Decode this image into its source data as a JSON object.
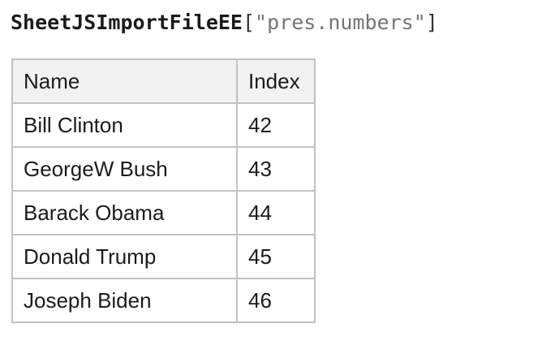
{
  "title": {
    "object": "SheetJSImportFileEE",
    "open_bracket": "[",
    "key": "\"pres.numbers\"",
    "close_bracket": "]"
  },
  "table": {
    "columns": [
      "Name",
      "Index"
    ],
    "rows": [
      {
        "name": "Bill Clinton",
        "index": 42
      },
      {
        "name": "GeorgeW Bush",
        "index": 43
      },
      {
        "name": "Barack Obama",
        "index": 44
      },
      {
        "name": "Donald Trump",
        "index": 45
      },
      {
        "name": "Joseph Biden",
        "index": 46
      }
    ]
  },
  "colors": {
    "text": "#1b1b1b",
    "bracket": "#333333",
    "string_gray": "#757575",
    "header_background": "#f2f2f2",
    "table_border": "#c2c2c2",
    "page_background": "#ffffff"
  }
}
